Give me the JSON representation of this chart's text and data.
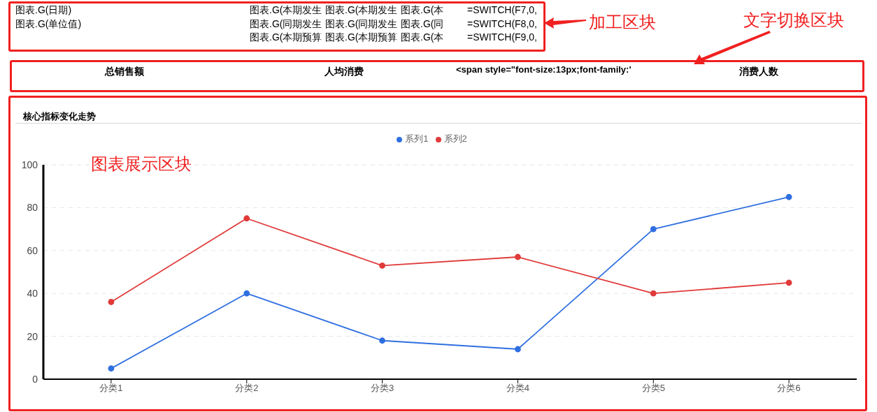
{
  "chart_data": {
    "type": "line",
    "title": "核心指标变化走势",
    "categories": [
      "分类1",
      "分类2",
      "分类3",
      "分类4",
      "分类5",
      "分类6"
    ],
    "series": [
      {
        "name": "系列1",
        "color": "#2f6fe0",
        "values": [
          5,
          40,
          18,
          14,
          70,
          85
        ]
      },
      {
        "name": "系列2",
        "color": "#e03a3a",
        "values": [
          36,
          75,
          53,
          57,
          40,
          45
        ]
      }
    ],
    "ylim": [
      0,
      100
    ],
    "yticks": [
      0,
      20,
      40,
      60,
      80,
      100
    ],
    "grid": "y",
    "legend": "top",
    "marker": "circle",
    "line_style": "solid",
    "annotations": [
      "图表.G(日期)",
      "图表.G(单位值)",
      "图表.G(本期发生",
      "图表.G(本期发生",
      "图表.G(本",
      "=SWITCH(F7,0,",
      "图表.G(同期发生",
      "图表.G(同期发生",
      "图表.G(同",
      "=SWITCH(F8,0,",
      "图表.G(本期预算",
      "图表.G(本期预算",
      "图表.G(本",
      "=SWITCH(F9,0,",
      "加工区块",
      "文字切换区块",
      "总销售额",
      "人均消费",
      "<span style=\"font-size:13px;font-family:'",
      "消费人数",
      "图表展示区块"
    ]
  }
}
